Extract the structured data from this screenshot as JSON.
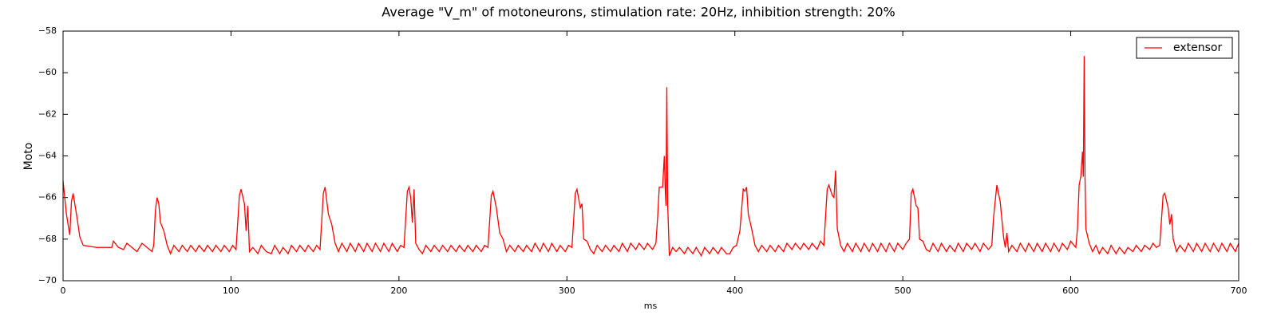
{
  "chart_data": {
    "type": "line",
    "title": "Average \"V_m\" of motoneurons, stimulation rate: 20Hz, inhibition strength: 20%",
    "xlabel": "ms",
    "ylabel": "Moto",
    "xlim": [
      0,
      700
    ],
    "xticks": [
      0,
      100,
      200,
      300,
      400,
      500,
      600,
      700
    ],
    "ylim": [
      -70,
      -58
    ],
    "yticks": [
      {
        "value": -70,
        "label": "−70"
      },
      {
        "value": -68,
        "label": "−68"
      },
      {
        "value": -66,
        "label": "−66"
      },
      {
        "value": -64,
        "label": "−64"
      },
      {
        "value": -62,
        "label": "−62"
      },
      {
        "value": -60,
        "label": "−60"
      },
      {
        "value": -58,
        "label": "−58"
      }
    ],
    "grid": false,
    "legend": "upper-right",
    "x": [
      0,
      2,
      4,
      5,
      6,
      8,
      10,
      12,
      20,
      29,
      30,
      33,
      36,
      38,
      41,
      44,
      47,
      50,
      53,
      54,
      55,
      56,
      57,
      58,
      60,
      62,
      64,
      66,
      69,
      71,
      74,
      76,
      79,
      81,
      84,
      86,
      89,
      91,
      94,
      96,
      99,
      101,
      103,
      105,
      106,
      108,
      109,
      110,
      111,
      113,
      116,
      118,
      121,
      124,
      126,
      129,
      131,
      134,
      136,
      139,
      141,
      144,
      146,
      149,
      151,
      153,
      155,
      156,
      158,
      160,
      162,
      164,
      166,
      169,
      171,
      174,
      176,
      179,
      181,
      184,
      186,
      189,
      191,
      194,
      196,
      199,
      201,
      203,
      205,
      206,
      207,
      208,
      209,
      210,
      212,
      214,
      216,
      219,
      221,
      224,
      226,
      229,
      231,
      234,
      236,
      239,
      241,
      244,
      246,
      249,
      251,
      253,
      255,
      256,
      258,
      260,
      262,
      264,
      266,
      269,
      271,
      274,
      276,
      279,
      281,
      284,
      286,
      289,
      291,
      294,
      296,
      299,
      301,
      303,
      305,
      306,
      308,
      309,
      310,
      312,
      314,
      316,
      318,
      321,
      323,
      326,
      328,
      331,
      333,
      336,
      338,
      341,
      343,
      346,
      348,
      351,
      353,
      354,
      355,
      357,
      358,
      358.5,
      359,
      359.5,
      360,
      361,
      363,
      365,
      367,
      370,
      372,
      375,
      377,
      380,
      382,
      385,
      387,
      390,
      392,
      395,
      397,
      399,
      401,
      403,
      405,
      406,
      407,
      408,
      410,
      412,
      414,
      416,
      419,
      421,
      424,
      426,
      429,
      431,
      434,
      436,
      439,
      441,
      444,
      446,
      449,
      451,
      453,
      455,
      456,
      458,
      459,
      460,
      461,
      463,
      465,
      467,
      470,
      472,
      475,
      477,
      480,
      482,
      485,
      487,
      490,
      492,
      495,
      497,
      500,
      502,
      504,
      505,
      506,
      508,
      509,
      510,
      512,
      514,
      516,
      518,
      521,
      523,
      526,
      528,
      531,
      533,
      536,
      538,
      541,
      543,
      546,
      548,
      551,
      553,
      554,
      556,
      558,
      560,
      561,
      562,
      563,
      565,
      568,
      570,
      573,
      575,
      578,
      580,
      583,
      585,
      588,
      590,
      593,
      595,
      598,
      600,
      603,
      604,
      605,
      606,
      607,
      607.5,
      608,
      608.5,
      609,
      611,
      613,
      615,
      617,
      619,
      622,
      624,
      627,
      629,
      632,
      634,
      637,
      639,
      642,
      644,
      647,
      649,
      651,
      653,
      655,
      656,
      658,
      659,
      660,
      661,
      663,
      665,
      668,
      670,
      673,
      675,
      678,
      680,
      683,
      685,
      688,
      690,
      693,
      695,
      698,
      700
    ],
    "series": [
      {
        "name": "extensor",
        "color": "#ff0000",
        "values": [
          -65.2,
          -66.8,
          -67.8,
          -66.2,
          -65.8,
          -66.8,
          -67.9,
          -68.3,
          -68.4,
          -68.4,
          -68.1,
          -68.4,
          -68.5,
          -68.2,
          -68.4,
          -68.6,
          -68.2,
          -68.4,
          -68.6,
          -68.3,
          -66.6,
          -66.0,
          -66.3,
          -67.2,
          -67.6,
          -68.3,
          -68.7,
          -68.3,
          -68.6,
          -68.3,
          -68.6,
          -68.3,
          -68.6,
          -68.3,
          -68.6,
          -68.3,
          -68.6,
          -68.3,
          -68.6,
          -68.3,
          -68.6,
          -68.3,
          -68.5,
          -65.9,
          -65.6,
          -66.3,
          -67.6,
          -66.4,
          -68.6,
          -68.4,
          -68.7,
          -68.3,
          -68.6,
          -68.7,
          -68.3,
          -68.7,
          -68.4,
          -68.7,
          -68.3,
          -68.6,
          -68.3,
          -68.6,
          -68.3,
          -68.6,
          -68.3,
          -68.5,
          -65.8,
          -65.5,
          -66.8,
          -67.3,
          -68.2,
          -68.6,
          -68.2,
          -68.6,
          -68.2,
          -68.6,
          -68.2,
          -68.6,
          -68.2,
          -68.6,
          -68.2,
          -68.6,
          -68.2,
          -68.6,
          -68.2,
          -68.6,
          -68.3,
          -68.4,
          -65.7,
          -65.5,
          -66.0,
          -67.2,
          -65.6,
          -68.2,
          -68.5,
          -68.7,
          -68.3,
          -68.6,
          -68.3,
          -68.6,
          -68.3,
          -68.6,
          -68.3,
          -68.6,
          -68.3,
          -68.6,
          -68.3,
          -68.6,
          -68.3,
          -68.6,
          -68.3,
          -68.4,
          -65.9,
          -65.7,
          -66.5,
          -67.7,
          -68.0,
          -68.6,
          -68.3,
          -68.6,
          -68.3,
          -68.6,
          -68.3,
          -68.6,
          -68.2,
          -68.6,
          -68.2,
          -68.6,
          -68.2,
          -68.6,
          -68.3,
          -68.6,
          -68.3,
          -68.4,
          -65.8,
          -65.6,
          -66.5,
          -66.3,
          -68.0,
          -68.1,
          -68.5,
          -68.7,
          -68.3,
          -68.6,
          -68.3,
          -68.6,
          -68.3,
          -68.6,
          -68.2,
          -68.6,
          -68.2,
          -68.5,
          -68.2,
          -68.5,
          -68.2,
          -68.5,
          -68.2,
          -67.0,
          -65.5,
          -65.5,
          -64.0,
          -65.5,
          -66.4,
          -60.7,
          -66.3,
          -68.8,
          -68.4,
          -68.6,
          -68.4,
          -68.7,
          -68.4,
          -68.7,
          -68.4,
          -68.8,
          -68.4,
          -68.7,
          -68.4,
          -68.7,
          -68.4,
          -68.7,
          -68.7,
          -68.4,
          -68.3,
          -67.6,
          -65.6,
          -65.7,
          -65.5,
          -66.8,
          -67.5,
          -68.3,
          -68.6,
          -68.3,
          -68.6,
          -68.3,
          -68.6,
          -68.3,
          -68.6,
          -68.2,
          -68.5,
          -68.2,
          -68.5,
          -68.2,
          -68.5,
          -68.2,
          -68.5,
          -68.1,
          -68.3,
          -65.6,
          -65.4,
          -65.9,
          -66.0,
          -64.7,
          -67.5,
          -68.3,
          -68.6,
          -68.2,
          -68.6,
          -68.2,
          -68.6,
          -68.2,
          -68.6,
          -68.2,
          -68.6,
          -68.2,
          -68.6,
          -68.2,
          -68.6,
          -68.2,
          -68.5,
          -68.2,
          -68.0,
          -65.8,
          -65.6,
          -66.4,
          -66.5,
          -68.0,
          -68.1,
          -68.5,
          -68.6,
          -68.2,
          -68.6,
          -68.2,
          -68.6,
          -68.3,
          -68.6,
          -68.2,
          -68.6,
          -68.2,
          -68.5,
          -68.2,
          -68.6,
          -68.2,
          -68.5,
          -68.3,
          -67.0,
          -65.4,
          -66.2,
          -67.9,
          -68.4,
          -67.7,
          -68.6,
          -68.3,
          -68.6,
          -68.2,
          -68.6,
          -68.2,
          -68.6,
          -68.2,
          -68.6,
          -68.2,
          -68.6,
          -68.2,
          -68.6,
          -68.2,
          -68.5,
          -68.1,
          -68.4,
          -67.5,
          -65.4,
          -65.0,
          -63.8,
          -65.0,
          -59.2,
          -65.0,
          -67.5,
          -68.2,
          -68.6,
          -68.3,
          -68.7,
          -68.4,
          -68.7,
          -68.3,
          -68.7,
          -68.4,
          -68.7,
          -68.4,
          -68.6,
          -68.3,
          -68.6,
          -68.3,
          -68.5,
          -68.2,
          -68.4,
          -68.3,
          -65.9,
          -65.8,
          -66.5,
          -67.3,
          -66.8,
          -68.0,
          -68.6,
          -68.3,
          -68.6,
          -68.2,
          -68.6,
          -68.2,
          -68.6,
          -68.2,
          -68.6,
          -68.2,
          -68.6,
          -68.2,
          -68.6,
          -68.2,
          -68.6,
          -68.2
        ]
      }
    ]
  }
}
